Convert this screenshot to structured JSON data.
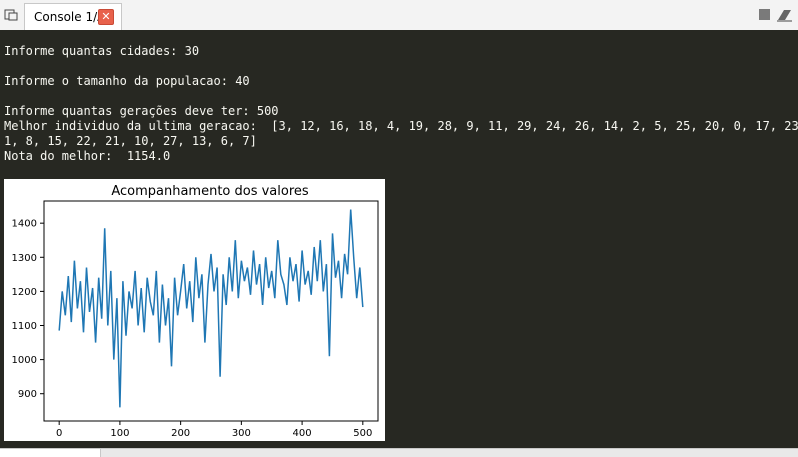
{
  "tab": {
    "label": "Console 1/A"
  },
  "console": {
    "lines": [
      "Informe quantas cidades: 30",
      "",
      "Informe o tamanho da populacao: 40",
      "",
      "Informe quantas gerações deve ter: 500",
      "Melhor individuo da ultima geracao:  [3, 12, 16, 18, 4, 19, 28, 9, 11, 29, 24, 26, 14, 2, 5, 25, 20, 0, 17, 23,",
      "1, 8, 15, 22, 21, 10, 27, 13, 6, 7]",
      "Nota do melhor:  1154.0"
    ]
  },
  "chart_data": {
    "type": "line",
    "title": "Acompanhamento dos valores",
    "xlim": [
      -25,
      525
    ],
    "ylim": [
      820,
      1465
    ],
    "xticks": [
      0,
      100,
      200,
      300,
      400,
      500
    ],
    "yticks": [
      900,
      1000,
      1100,
      1200,
      1300,
      1400
    ],
    "color": "#1f77b4",
    "series": [
      {
        "x": [
          0,
          5,
          10,
          15,
          20,
          25,
          30,
          35,
          40,
          45,
          50,
          55,
          60,
          65,
          70,
          75,
          80,
          85,
          90,
          95,
          100,
          105,
          110,
          115,
          120,
          125,
          130,
          135,
          140,
          145,
          150,
          155,
          160,
          165,
          170,
          175,
          180,
          185,
          190,
          195,
          200,
          205,
          210,
          215,
          220,
          225,
          230,
          235,
          240,
          245,
          250,
          255,
          260,
          265,
          270,
          275,
          280,
          285,
          290,
          295,
          300,
          305,
          310,
          315,
          320,
          325,
          330,
          335,
          340,
          345,
          350,
          355,
          360,
          365,
          370,
          375,
          380,
          385,
          390,
          395,
          400,
          405,
          410,
          415,
          420,
          425,
          430,
          435,
          440,
          445,
          450,
          455,
          460,
          465,
          470,
          475,
          480,
          485,
          490,
          495,
          500
        ],
        "values": [
          1085,
          1200,
          1130,
          1245,
          1110,
          1290,
          1150,
          1230,
          1080,
          1270,
          1140,
          1210,
          1050,
          1240,
          1120,
          1385,
          1100,
          1260,
          1000,
          1180,
          860,
          1230,
          1070,
          1200,
          1150,
          1260,
          1100,
          1210,
          1080,
          1240,
          1170,
          1130,
          1260,
          1050,
          1220,
          1100,
          1180,
          980,
          1240,
          1130,
          1200,
          1280,
          1150,
          1230,
          1110,
          1300,
          1180,
          1250,
          1050,
          1220,
          1310,
          1200,
          1270,
          950,
          1250,
          1160,
          1300,
          1200,
          1350,
          1180,
          1290,
          1230,
          1270,
          1190,
          1320,
          1220,
          1280,
          1160,
          1300,
          1210,
          1260,
          1180,
          1350,
          1250,
          1220,
          1160,
          1300,
          1230,
          1280,
          1170,
          1320,
          1220,
          1260,
          1190,
          1330,
          1230,
          1350,
          1200,
          1280,
          1010,
          1370,
          1240,
          1290,
          1180,
          1310,
          1250,
          1440,
          1300,
          1180,
          1270,
          1154
        ]
      }
    ]
  }
}
